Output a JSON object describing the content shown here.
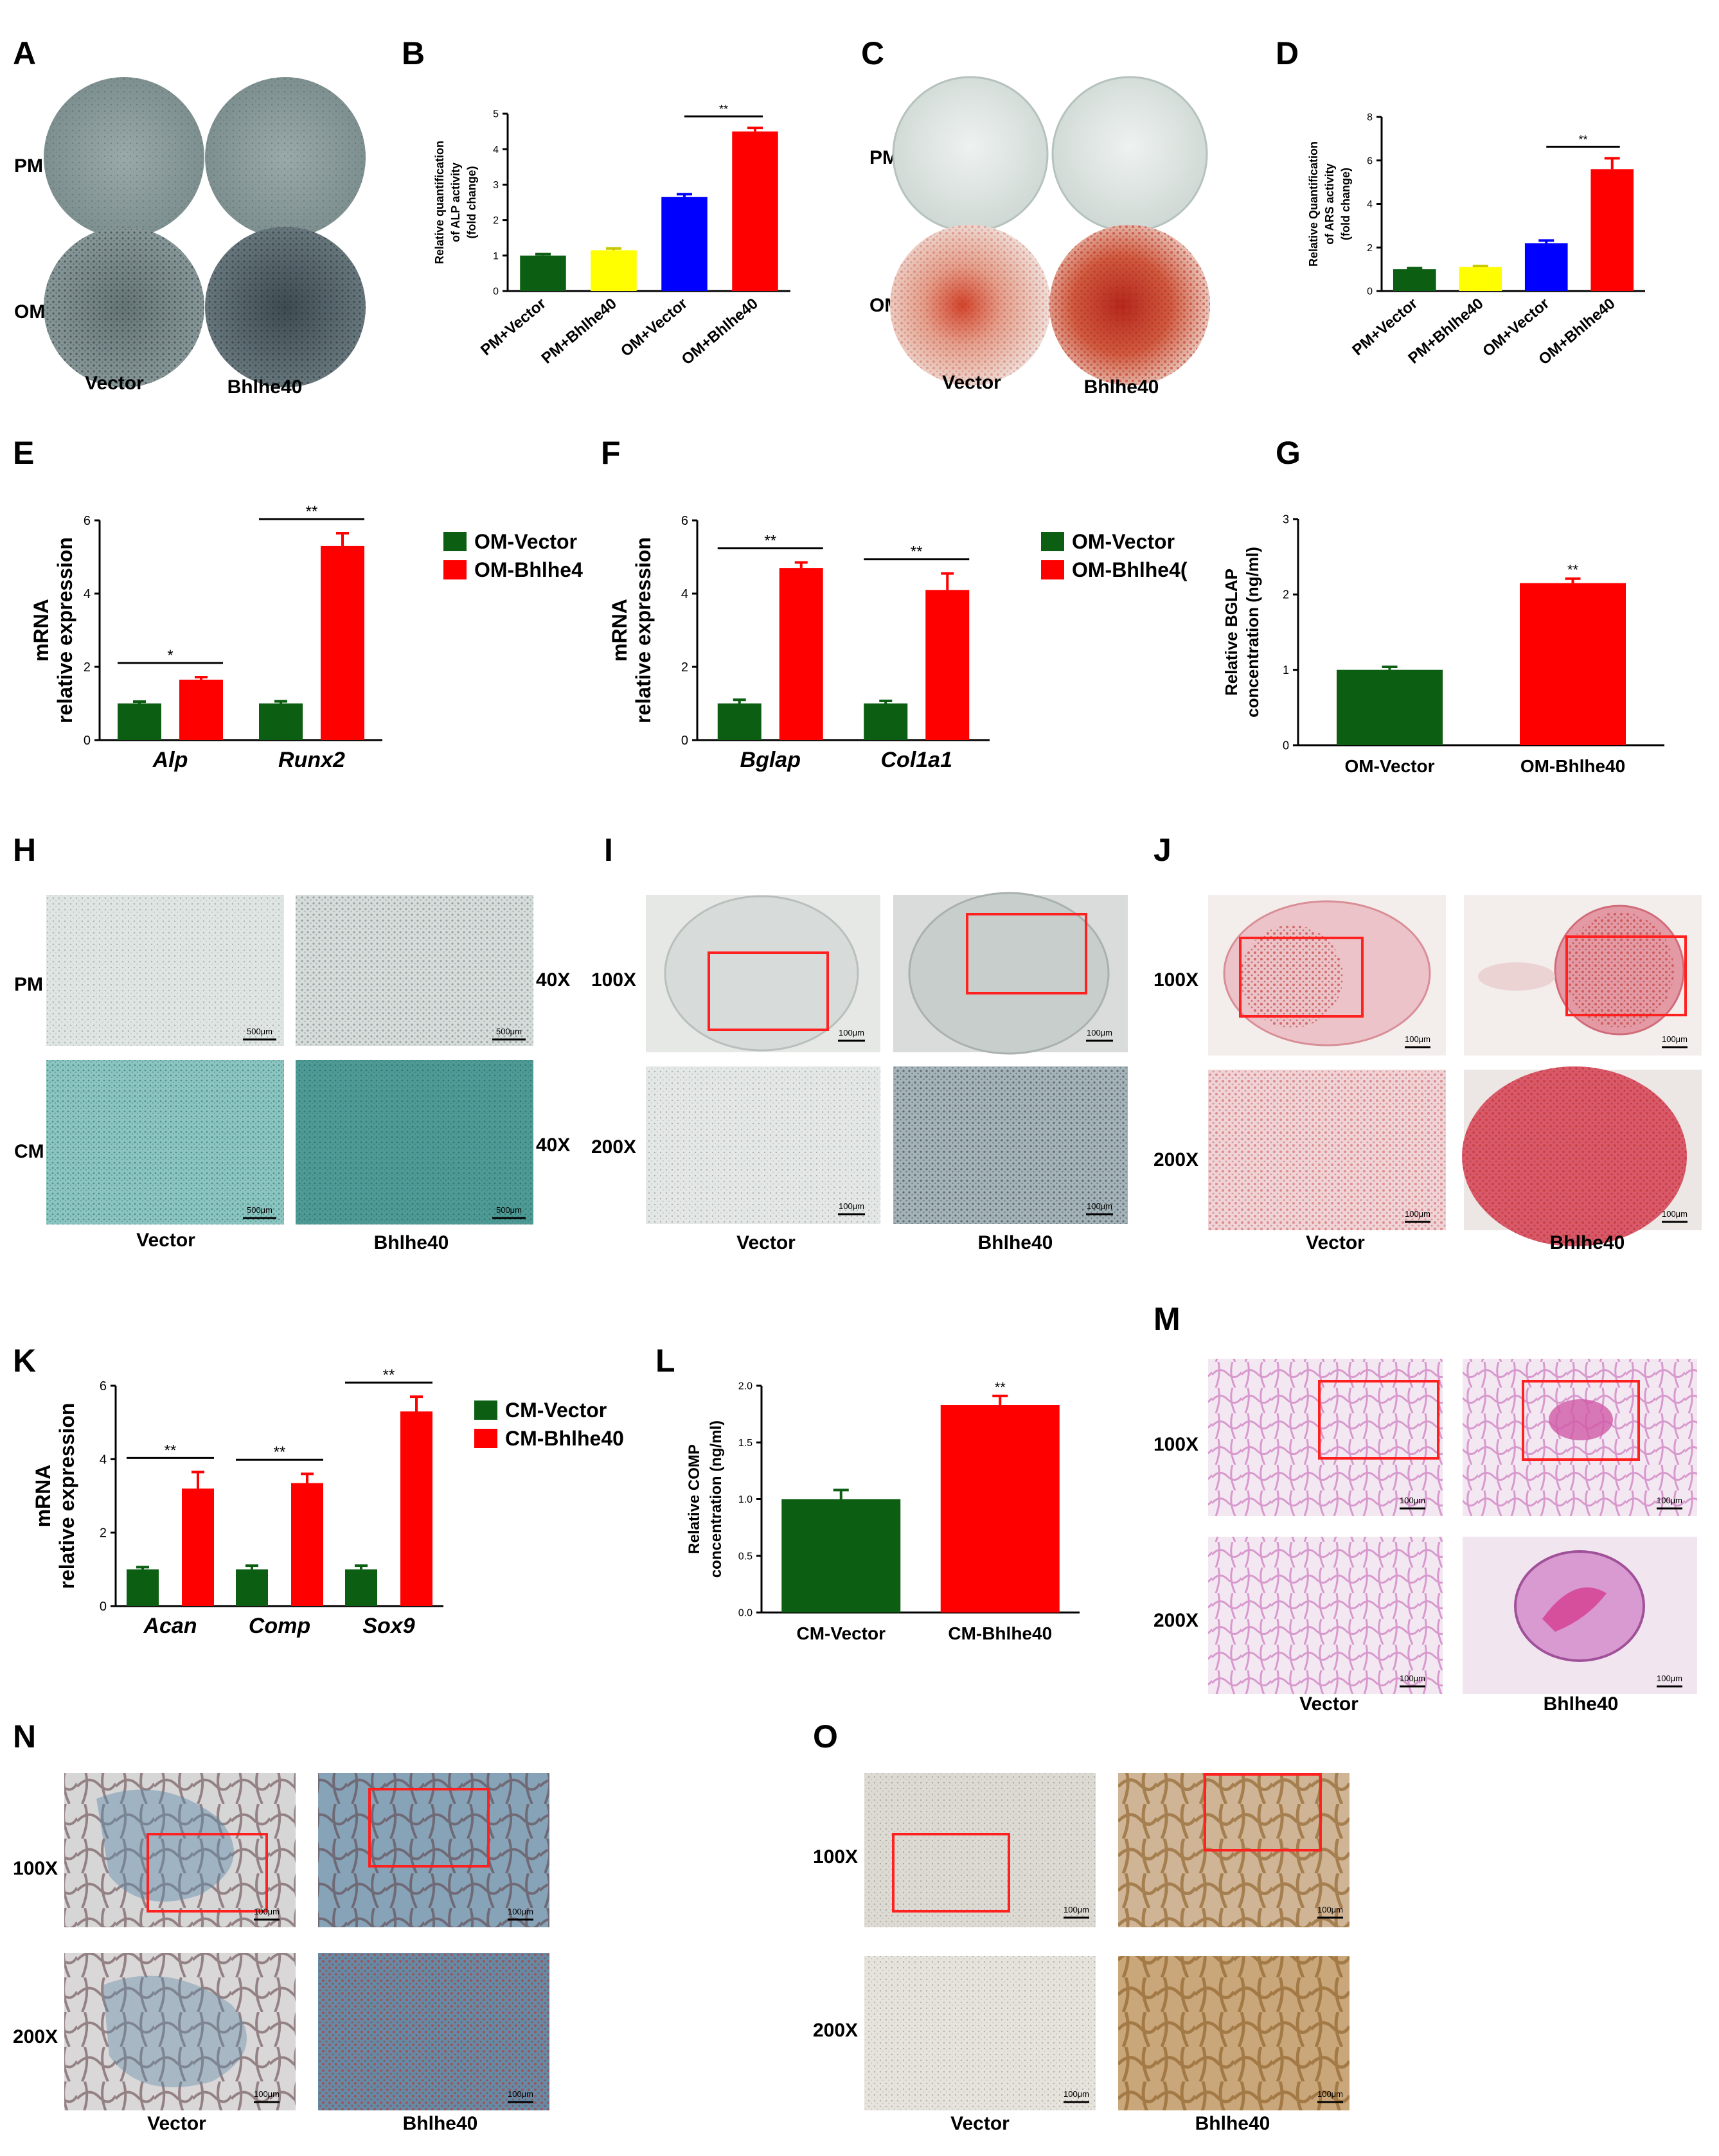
{
  "colors": {
    "vector_green": "#0b5e12",
    "bhlhe40_red": "#ff0000",
    "yellow": "#ffff00",
    "blue": "#0000ff",
    "box_red": "#ff2020"
  },
  "panels": {
    "A": {
      "letter": "A",
      "rows": [
        "PM",
        "OM"
      ],
      "cols": [
        "Vector",
        "Bhlhe40"
      ]
    },
    "B": {
      "letter": "B"
    },
    "C": {
      "letter": "C",
      "rows": [
        "PM",
        "OM"
      ],
      "cols": [
        "Vector",
        "Bhlhe40"
      ]
    },
    "D": {
      "letter": "D"
    },
    "E": {
      "letter": "E"
    },
    "F": {
      "letter": "F"
    },
    "G": {
      "letter": "G"
    },
    "H": {
      "letter": "H",
      "rows": [
        "PM",
        "CM"
      ],
      "cols": [
        "Vector",
        "Bhlhe40"
      ],
      "mag": [
        "40X",
        "40X"
      ],
      "scale": "500μm"
    },
    "I": {
      "letter": "I",
      "rows": [
        "100X",
        "200X"
      ],
      "cols": [
        "Vector",
        "Bhlhe40"
      ],
      "scale": "100μm"
    },
    "J": {
      "letter": "J",
      "rows": [
        "100X",
        "200X"
      ],
      "cols": [
        "Vector",
        "Bhlhe40"
      ],
      "scale": "100μm"
    },
    "K": {
      "letter": "K"
    },
    "L": {
      "letter": "L"
    },
    "M": {
      "letter": "M",
      "rows": [
        "100X",
        "200X"
      ],
      "cols": [
        "Vector",
        "Bhlhe40"
      ],
      "scale": "100μm"
    },
    "N": {
      "letter": "N",
      "rows": [
        "100X",
        "200X"
      ],
      "cols": [
        "Vector",
        "Bhlhe40"
      ],
      "scale": "100μm"
    },
    "O": {
      "letter": "O",
      "rows": [
        "100X",
        "200X"
      ],
      "cols": [
        "Vector",
        "Bhlhe40"
      ],
      "scale": "100μm"
    }
  },
  "chart_data": [
    {
      "id": "B",
      "type": "bar",
      "categories": [
        "PM+Vector",
        "PM+Bhlhe40",
        "OM+Vector",
        "OM+Bhlhe40"
      ],
      "values": [
        1.0,
        1.15,
        2.65,
        4.5
      ],
      "errors": [
        0.04,
        0.05,
        0.08,
        0.1
      ],
      "colors": [
        "#0b5e12",
        "#ffff00",
        "#0000ff",
        "#ff0000"
      ],
      "ylabel": [
        "Relative quantification",
        "of ALP activity",
        "(fold change)"
      ],
      "ylim": [
        0,
        5
      ],
      "yticks": [
        0,
        1,
        2,
        3,
        4,
        5
      ],
      "significance": [
        {
          "from": 2,
          "to": 3,
          "label": "**"
        }
      ],
      "grid": false
    },
    {
      "id": "D",
      "type": "bar",
      "categories": [
        "PM+Vector",
        "PM+Bhlhe40",
        "OM+Vector",
        "OM+Bhlhe40"
      ],
      "values": [
        1.0,
        1.1,
        2.2,
        5.6
      ],
      "errors": [
        0.05,
        0.05,
        0.12,
        0.5
      ],
      "colors": [
        "#0b5e12",
        "#ffff00",
        "#0000ff",
        "#ff0000"
      ],
      "ylabel": [
        "Relative Quantification",
        "of ARS activity",
        "(fold change)"
      ],
      "ylim": [
        0,
        8
      ],
      "yticks": [
        0,
        2,
        4,
        6,
        8
      ],
      "significance": [
        {
          "from": 2,
          "to": 3,
          "label": "**"
        }
      ],
      "grid": false
    },
    {
      "id": "E",
      "type": "bar",
      "categories": [
        "Alp",
        "Runx2"
      ],
      "series": [
        {
          "name": "OM-Vector",
          "values": [
            1.0,
            1.0
          ],
          "errors": [
            0.05,
            0.06
          ]
        },
        {
          "name": "OM-Bhlhe4",
          "values": [
            1.65,
            5.3
          ],
          "errors": [
            0.07,
            0.35
          ]
        }
      ],
      "ylabel": [
        "mRNA",
        "relative expression"
      ],
      "ylim": [
        0,
        6
      ],
      "yticks": [
        0,
        2,
        4,
        6
      ],
      "significance": [
        "*",
        "**"
      ],
      "legend": "right",
      "grid": false
    },
    {
      "id": "F",
      "type": "bar",
      "categories": [
        "Bglap",
        "Col1a1"
      ],
      "series": [
        {
          "name": "OM-Vector",
          "values": [
            1.0,
            1.0
          ],
          "errors": [
            0.1,
            0.07
          ]
        },
        {
          "name": "OM-Bhlhe4(",
          "values": [
            4.7,
            4.1
          ],
          "errors": [
            0.15,
            0.45
          ]
        }
      ],
      "ylabel": [
        "mRNA",
        "relative expression"
      ],
      "ylim": [
        0,
        6
      ],
      "yticks": [
        0,
        2,
        4,
        6
      ],
      "significance": [
        "**",
        "**"
      ],
      "legend": "right",
      "grid": false
    },
    {
      "id": "G",
      "type": "bar",
      "categories": [
        "OM-Vector",
        "OM-Bhlhe40"
      ],
      "values": [
        1.0,
        2.15
      ],
      "errors": [
        0.04,
        0.06
      ],
      "colors": [
        "#0b5e12",
        "#ff0000"
      ],
      "ylabel": [
        "Relative BGLAP",
        "concentration (ng/ml)"
      ],
      "ylim": [
        0,
        3
      ],
      "yticks": [
        0,
        1,
        2,
        3
      ],
      "significance": [
        {
          "bar": 1,
          "label": "**"
        }
      ],
      "grid": false
    },
    {
      "id": "K",
      "type": "bar",
      "categories": [
        "Acan",
        "Comp",
        "Sox9"
      ],
      "series": [
        {
          "name": "CM-Vector",
          "values": [
            1.0,
            1.0,
            1.0
          ],
          "errors": [
            0.06,
            0.1,
            0.1
          ]
        },
        {
          "name": "CM-Bhlhe40",
          "values": [
            3.2,
            3.35,
            5.3
          ],
          "errors": [
            0.45,
            0.25,
            0.4
          ]
        }
      ],
      "ylabel": [
        "mRNA",
        "relative expression"
      ],
      "ylim": [
        0,
        6
      ],
      "yticks": [
        0,
        2,
        4,
        6
      ],
      "significance": [
        "**",
        "**",
        "**"
      ],
      "legend": "right",
      "grid": false
    },
    {
      "id": "L",
      "type": "bar",
      "categories": [
        "CM-Vector",
        "CM-Bhlhe40"
      ],
      "values": [
        1.0,
        1.83
      ],
      "errors": [
        0.08,
        0.08
      ],
      "colors": [
        "#0b5e12",
        "#ff0000"
      ],
      "ylabel": [
        "Relative COMP",
        "concentration (ng/ml)"
      ],
      "ylim": [
        0,
        2.0
      ],
      "yticks": [
        "0.0",
        "0.5",
        "1.0",
        "1.5",
        "2.0"
      ],
      "significance": [
        {
          "bar": 1,
          "label": "**"
        }
      ],
      "grid": false
    }
  ]
}
